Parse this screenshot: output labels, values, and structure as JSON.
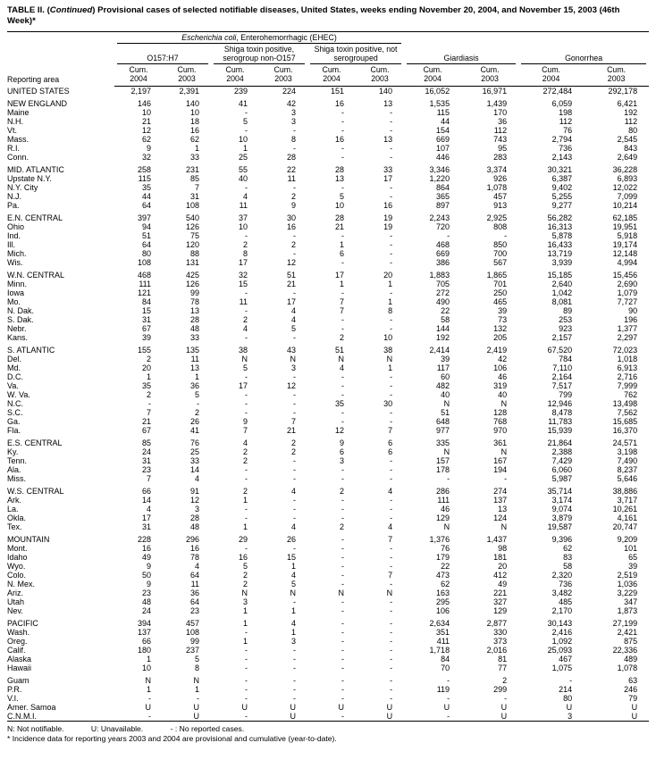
{
  "title": {
    "part1": "TABLE II. (",
    "continued": "Continued",
    "part2": ") Provisional cases of selected notifiable diseases, United States, weeks ending November 20, 2004, and November 15, 2003 (46th Week)*"
  },
  "header": {
    "reporting_area": "Reporting area",
    "ehec_italic": "Escherichia coli",
    "ehec_rest": ", Enterohemorrhagic (EHEC)",
    "groups": {
      "o157": "O157:H7",
      "shiga_non_o157": "Shiga toxin positive, serogroup non-O157",
      "shiga_not_serogrouped": "Shiga toxin positive, not serogrouped",
      "giardiasis": "Giardiasis",
      "gonorrhea": "Gonorrhea"
    },
    "col_label": "Cum.",
    "col_years": [
      "2004",
      "2003",
      "2004",
      "2003",
      "2004",
      "2003",
      "2004",
      "2003",
      "2004",
      "2003"
    ]
  },
  "rows": [
    {
      "area": "UNITED STATES",
      "values": [
        "2,197",
        "2,391",
        "239",
        "224",
        "151",
        "140",
        "16,052",
        "16,971",
        "272,484",
        "292,178"
      ]
    },
    {
      "area": "NEW ENGLAND",
      "spacer": true,
      "values": [
        "146",
        "140",
        "41",
        "42",
        "16",
        "13",
        "1,535",
        "1,439",
        "6,059",
        "6,421"
      ]
    },
    {
      "area": "Maine",
      "values": [
        "10",
        "10",
        "-",
        "3",
        "-",
        "-",
        "115",
        "170",
        "198",
        "192"
      ]
    },
    {
      "area": "N.H.",
      "values": [
        "21",
        "18",
        "5",
        "3",
        "-",
        "-",
        "44",
        "36",
        "112",
        "112"
      ]
    },
    {
      "area": "Vt.",
      "values": [
        "12",
        "16",
        "-",
        "-",
        "-",
        "-",
        "154",
        "112",
        "76",
        "80"
      ]
    },
    {
      "area": "Mass.",
      "values": [
        "62",
        "62",
        "10",
        "8",
        "16",
        "13",
        "669",
        "743",
        "2,794",
        "2,545"
      ]
    },
    {
      "area": "R.I.",
      "values": [
        "9",
        "1",
        "1",
        "-",
        "-",
        "-",
        "107",
        "95",
        "736",
        "843"
      ]
    },
    {
      "area": "Conn.",
      "values": [
        "32",
        "33",
        "25",
        "28",
        "-",
        "-",
        "446",
        "283",
        "2,143",
        "2,649"
      ]
    },
    {
      "area": "MID. ATLANTIC",
      "spacer": true,
      "values": [
        "258",
        "231",
        "55",
        "22",
        "28",
        "33",
        "3,346",
        "3,374",
        "30,321",
        "36,228"
      ]
    },
    {
      "area": "Upstate N.Y.",
      "values": [
        "115",
        "85",
        "40",
        "11",
        "13",
        "17",
        "1,220",
        "926",
        "6,387",
        "6,893"
      ]
    },
    {
      "area": "N.Y. City",
      "values": [
        "35",
        "7",
        "-",
        "-",
        "-",
        "-",
        "864",
        "1,078",
        "9,402",
        "12,022"
      ]
    },
    {
      "area": "N.J.",
      "values": [
        "44",
        "31",
        "4",
        "2",
        "5",
        "-",
        "365",
        "457",
        "5,255",
        "7,099"
      ]
    },
    {
      "area": "Pa.",
      "values": [
        "64",
        "108",
        "11",
        "9",
        "10",
        "16",
        "897",
        "913",
        "9,277",
        "10,214"
      ]
    },
    {
      "area": "E.N. CENTRAL",
      "spacer": true,
      "values": [
        "397",
        "540",
        "37",
        "30",
        "28",
        "19",
        "2,243",
        "2,925",
        "56,282",
        "62,185"
      ]
    },
    {
      "area": "Ohio",
      "values": [
        "94",
        "126",
        "10",
        "16",
        "21",
        "19",
        "720",
        "808",
        "16,313",
        "19,951"
      ]
    },
    {
      "area": "Ind.",
      "values": [
        "51",
        "75",
        "-",
        "-",
        "-",
        "-",
        "-",
        "-",
        "5,878",
        "5,918"
      ]
    },
    {
      "area": "Ill.",
      "values": [
        "64",
        "120",
        "2",
        "2",
        "1",
        "-",
        "468",
        "850",
        "16,433",
        "19,174"
      ]
    },
    {
      "area": "Mich.",
      "values": [
        "80",
        "88",
        "8",
        "-",
        "6",
        "-",
        "669",
        "700",
        "13,719",
        "12,148"
      ]
    },
    {
      "area": "Wis.",
      "values": [
        "108",
        "131",
        "17",
        "12",
        "-",
        "-",
        "386",
        "567",
        "3,939",
        "4,994"
      ]
    },
    {
      "area": "W.N. CENTRAL",
      "spacer": true,
      "values": [
        "468",
        "425",
        "32",
        "51",
        "17",
        "20",
        "1,883",
        "1,865",
        "15,185",
        "15,456"
      ]
    },
    {
      "area": "Minn.",
      "values": [
        "111",
        "126",
        "15",
        "21",
        "1",
        "1",
        "705",
        "701",
        "2,640",
        "2,690"
      ]
    },
    {
      "area": "Iowa",
      "values": [
        "121",
        "99",
        "-",
        "-",
        "-",
        "-",
        "272",
        "250",
        "1,042",
        "1,079"
      ]
    },
    {
      "area": "Mo.",
      "values": [
        "84",
        "78",
        "11",
        "17",
        "7",
        "1",
        "490",
        "465",
        "8,081",
        "7,727"
      ]
    },
    {
      "area": "N. Dak.",
      "values": [
        "15",
        "13",
        "-",
        "4",
        "7",
        "8",
        "22",
        "39",
        "89",
        "90"
      ]
    },
    {
      "area": "S. Dak.",
      "values": [
        "31",
        "28",
        "2",
        "4",
        "-",
        "-",
        "58",
        "73",
        "253",
        "196"
      ]
    },
    {
      "area": "Nebr.",
      "values": [
        "67",
        "48",
        "4",
        "5",
        "-",
        "-",
        "144",
        "132",
        "923",
        "1,377"
      ]
    },
    {
      "area": "Kans.",
      "values": [
        "39",
        "33",
        "-",
        "-",
        "2",
        "10",
        "192",
        "205",
        "2,157",
        "2,297"
      ]
    },
    {
      "area": "S. ATLANTIC",
      "spacer": true,
      "values": [
        "155",
        "135",
        "38",
        "43",
        "51",
        "38",
        "2,414",
        "2,419",
        "67,520",
        "72,023"
      ]
    },
    {
      "area": "Del.",
      "values": [
        "2",
        "11",
        "N",
        "N",
        "N",
        "N",
        "39",
        "42",
        "784",
        "1,018"
      ]
    },
    {
      "area": "Md.",
      "values": [
        "20",
        "13",
        "5",
        "3",
        "4",
        "1",
        "117",
        "106",
        "7,110",
        "6,913"
      ]
    },
    {
      "area": "D.C.",
      "values": [
        "1",
        "1",
        "-",
        "-",
        "-",
        "-",
        "60",
        "46",
        "2,164",
        "2,716"
      ]
    },
    {
      "area": "Va.",
      "values": [
        "35",
        "36",
        "17",
        "12",
        "-",
        "-",
        "482",
        "319",
        "7,517",
        "7,999"
      ]
    },
    {
      "area": "W. Va.",
      "values": [
        "2",
        "5",
        "-",
        "-",
        "-",
        "-",
        "40",
        "40",
        "799",
        "762"
      ]
    },
    {
      "area": "N.C.",
      "values": [
        "-",
        "-",
        "-",
        "-",
        "35",
        "30",
        "N",
        "N",
        "12,946",
        "13,498"
      ]
    },
    {
      "area": "S.C.",
      "values": [
        "7",
        "2",
        "-",
        "-",
        "-",
        "-",
        "51",
        "128",
        "8,478",
        "7,562"
      ]
    },
    {
      "area": "Ga.",
      "values": [
        "21",
        "26",
        "9",
        "7",
        "-",
        "-",
        "648",
        "768",
        "11,783",
        "15,685"
      ]
    },
    {
      "area": "Fla.",
      "values": [
        "67",
        "41",
        "7",
        "21",
        "12",
        "7",
        "977",
        "970",
        "15,939",
        "16,370"
      ]
    },
    {
      "area": "E.S. CENTRAL",
      "spacer": true,
      "values": [
        "85",
        "76",
        "4",
        "2",
        "9",
        "6",
        "335",
        "361",
        "21,864",
        "24,571"
      ]
    },
    {
      "area": "Ky.",
      "values": [
        "24",
        "25",
        "2",
        "2",
        "6",
        "6",
        "N",
        "N",
        "2,388",
        "3,198"
      ]
    },
    {
      "area": "Tenn.",
      "values": [
        "31",
        "33",
        "2",
        "-",
        "3",
        "-",
        "157",
        "167",
        "7,429",
        "7,490"
      ]
    },
    {
      "area": "Ala.",
      "values": [
        "23",
        "14",
        "-",
        "-",
        "-",
        "-",
        "178",
        "194",
        "6,060",
        "8,237"
      ]
    },
    {
      "area": "Miss.",
      "values": [
        "7",
        "4",
        "-",
        "-",
        "-",
        "-",
        "-",
        "-",
        "5,987",
        "5,646"
      ]
    },
    {
      "area": "W.S. CENTRAL",
      "spacer": true,
      "values": [
        "66",
        "91",
        "2",
        "4",
        "2",
        "4",
        "286",
        "274",
        "35,714",
        "38,886"
      ]
    },
    {
      "area": "Ark.",
      "values": [
        "14",
        "12",
        "1",
        "-",
        "-",
        "-",
        "111",
        "137",
        "3,174",
        "3,717"
      ]
    },
    {
      "area": "La.",
      "values": [
        "4",
        "3",
        "-",
        "-",
        "-",
        "-",
        "46",
        "13",
        "9,074",
        "10,261"
      ]
    },
    {
      "area": "Okla.",
      "values": [
        "17",
        "28",
        "-",
        "-",
        "-",
        "-",
        "129",
        "124",
        "3,879",
        "4,161"
      ]
    },
    {
      "area": "Tex.",
      "values": [
        "31",
        "48",
        "1",
        "4",
        "2",
        "4",
        "N",
        "N",
        "19,587",
        "20,747"
      ]
    },
    {
      "area": "MOUNTAIN",
      "spacer": true,
      "values": [
        "228",
        "296",
        "29",
        "26",
        "-",
        "7",
        "1,376",
        "1,437",
        "9,396",
        "9,209"
      ]
    },
    {
      "area": "Mont.",
      "values": [
        "16",
        "16",
        "-",
        "-",
        "-",
        "-",
        "76",
        "98",
        "62",
        "101"
      ]
    },
    {
      "area": "Idaho",
      "values": [
        "49",
        "78",
        "16",
        "15",
        "-",
        "-",
        "179",
        "181",
        "83",
        "65"
      ]
    },
    {
      "area": "Wyo.",
      "values": [
        "9",
        "4",
        "5",
        "1",
        "-",
        "-",
        "22",
        "20",
        "58",
        "39"
      ]
    },
    {
      "area": "Colo.",
      "values": [
        "50",
        "64",
        "2",
        "4",
        "-",
        "7",
        "473",
        "412",
        "2,320",
        "2,519"
      ]
    },
    {
      "area": "N. Mex.",
      "values": [
        "9",
        "11",
        "2",
        "5",
        "-",
        "-",
        "62",
        "49",
        "736",
        "1,036"
      ]
    },
    {
      "area": "Ariz.",
      "values": [
        "23",
        "36",
        "N",
        "N",
        "N",
        "N",
        "163",
        "221",
        "3,482",
        "3,229"
      ]
    },
    {
      "area": "Utah",
      "values": [
        "48",
        "64",
        "3",
        "-",
        "-",
        "-",
        "295",
        "327",
        "485",
        "347"
      ]
    },
    {
      "area": "Nev.",
      "values": [
        "24",
        "23",
        "1",
        "1",
        "-",
        "-",
        "106",
        "129",
        "2,170",
        "1,873"
      ]
    },
    {
      "area": "PACIFIC",
      "spacer": true,
      "values": [
        "394",
        "457",
        "1",
        "4",
        "-",
        "-",
        "2,634",
        "2,877",
        "30,143",
        "27,199"
      ]
    },
    {
      "area": "Wash.",
      "values": [
        "137",
        "108",
        "-",
        "1",
        "-",
        "-",
        "351",
        "330",
        "2,416",
        "2,421"
      ]
    },
    {
      "area": "Oreg.",
      "values": [
        "66",
        "99",
        "1",
        "3",
        "-",
        "-",
        "411",
        "373",
        "1,092",
        "875"
      ]
    },
    {
      "area": "Calif.",
      "values": [
        "180",
        "237",
        "-",
        "-",
        "-",
        "-",
        "1,718",
        "2,016",
        "25,093",
        "22,336"
      ]
    },
    {
      "area": "Alaska",
      "values": [
        "1",
        "5",
        "-",
        "-",
        "-",
        "-",
        "84",
        "81",
        "467",
        "489"
      ]
    },
    {
      "area": "Hawaii",
      "values": [
        "10",
        "8",
        "-",
        "-",
        "-",
        "-",
        "70",
        "77",
        "1,075",
        "1,078"
      ]
    },
    {
      "area": "Guam",
      "spacer": true,
      "values": [
        "N",
        "N",
        "-",
        "-",
        "-",
        "-",
        "-",
        "2",
        "-",
        "63"
      ]
    },
    {
      "area": "P.R.",
      "values": [
        "1",
        "1",
        "-",
        "-",
        "-",
        "-",
        "119",
        "299",
        "214",
        "246"
      ]
    },
    {
      "area": "V.I.",
      "values": [
        "-",
        "-",
        "-",
        "-",
        "-",
        "-",
        "-",
        "-",
        "80",
        "79"
      ]
    },
    {
      "area": "Amer. Samoa",
      "values": [
        "U",
        "U",
        "U",
        "U",
        "U",
        "U",
        "U",
        "U",
        "U",
        "U"
      ]
    },
    {
      "area": "C.N.M.I.",
      "values": [
        "-",
        "U",
        "-",
        "U",
        "-",
        "U",
        "-",
        "U",
        "3",
        "U"
      ]
    }
  ],
  "footnotes": {
    "n": "N: Not notifiable.",
    "u": "U: Unavailable.",
    "dash": "- : No reported cases.",
    "star": "* Incidence data for reporting years 2003 and 2004 are provisional and cumulative (year-to-date)."
  }
}
